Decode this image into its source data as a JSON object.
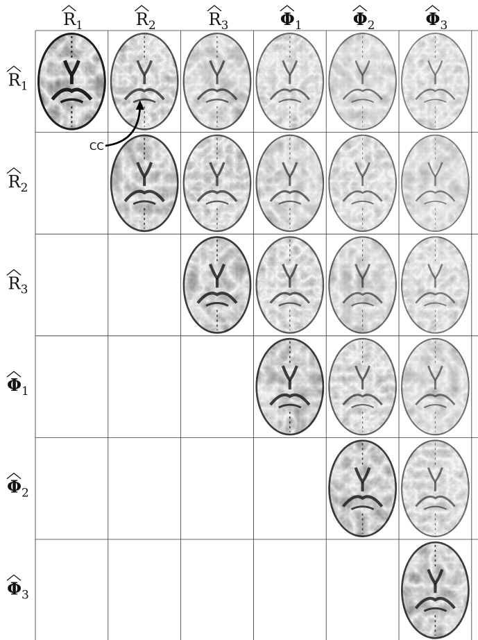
{
  "matrix": {
    "columns": [
      {
        "id": "R1",
        "symbol": "R",
        "subscript": "1",
        "bold": false
      },
      {
        "id": "R2",
        "symbol": "R",
        "subscript": "2",
        "bold": false
      },
      {
        "id": "R3",
        "symbol": "R",
        "subscript": "3",
        "bold": false
      },
      {
        "id": "Phi1",
        "symbol": "Φ",
        "subscript": "1",
        "bold": true
      },
      {
        "id": "Phi2",
        "symbol": "Φ",
        "subscript": "2",
        "bold": true
      },
      {
        "id": "Phi3",
        "symbol": "Φ",
        "subscript": "3",
        "bold": true
      }
    ],
    "rows": [
      {
        "id": "R1",
        "symbol": "R",
        "subscript": "1",
        "bold": false
      },
      {
        "id": "R2",
        "symbol": "R",
        "subscript": "2",
        "bold": false
      },
      {
        "id": "R3",
        "symbol": "R",
        "subscript": "3",
        "bold": false
      },
      {
        "id": "Phi1",
        "symbol": "Φ",
        "subscript": "1",
        "bold": true
      },
      {
        "id": "Phi2",
        "symbol": "Φ",
        "subscript": "2",
        "bold": true
      },
      {
        "id": "Phi3",
        "symbol": "Φ",
        "subscript": "3",
        "bold": true
      }
    ],
    "filled": "upper-triangular"
  },
  "annotation": {
    "label": "CC",
    "row": 0,
    "col": 1
  }
}
